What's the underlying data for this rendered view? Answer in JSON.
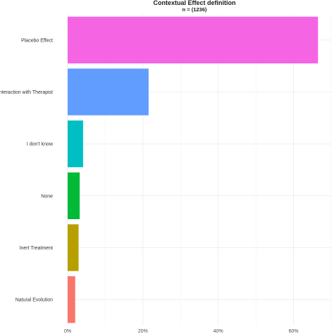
{
  "chart_data": {
    "type": "bar",
    "orientation": "horizontal",
    "title": "Contextual Effect definition",
    "subtitle": "n = (1236)",
    "xlabel": "",
    "ylabel": "",
    "categories": [
      "Placebo Effect",
      "Interaction with Therapist",
      "I don't know",
      "None",
      "Inert Treatment",
      "Natural Evolution"
    ],
    "values": [
      66.5,
      21.5,
      4.1,
      3.2,
      2.9,
      2.0
    ],
    "colors": [
      "#F564E3",
      "#619CFF",
      "#00BFC4",
      "#00BA38",
      "#B79F00",
      "#F8766D"
    ],
    "xlim": [
      0,
      70
    ],
    "x_ticks": [
      0,
      20,
      40,
      60
    ],
    "x_tick_labels": [
      "0%",
      "20%",
      "40%",
      "60%"
    ],
    "grid": true,
    "legend": "none"
  }
}
